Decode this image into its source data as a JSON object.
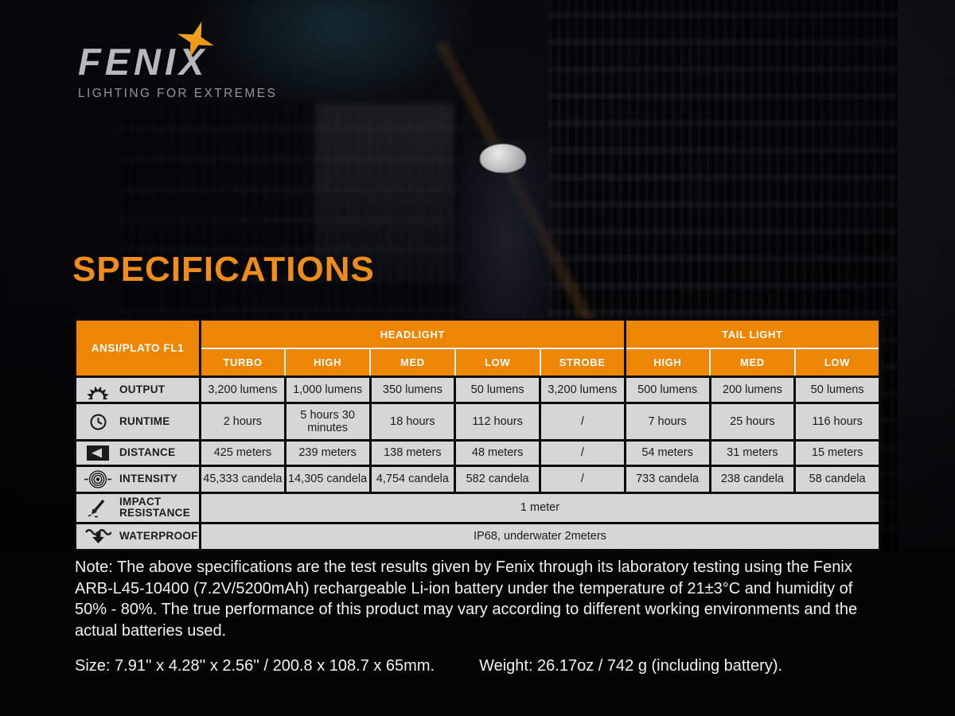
{
  "brand": {
    "logo_text": "FENIX",
    "tagline": "LIGHTING FOR EXTREMES"
  },
  "page_title": "SPECIFICATIONS",
  "table": {
    "corner_label": "ANSI/PLATO FL1",
    "groups": [
      {
        "label": "HEADLIGHT",
        "cols": [
          "TURBO",
          "HIGH",
          "MED",
          "LOW",
          "STROBE"
        ]
      },
      {
        "label": "TAIL LIGHT",
        "cols": [
          "HIGH",
          "MED",
          "LOW"
        ]
      }
    ],
    "rows": [
      {
        "icon": "output-icon",
        "label": "OUTPUT",
        "values": [
          "3,200 lumens",
          "1,000 lumens",
          "350 lumens",
          "50 lumens",
          "3,200 lumens",
          "500 lumens",
          "200 lumens",
          "50 lumens"
        ]
      },
      {
        "icon": "runtime-icon",
        "label": "RUNTIME",
        "values": [
          "2 hours",
          "5 hours 30 minutes",
          "18 hours",
          "112 hours",
          "/",
          "7 hours",
          "25 hours",
          "116 hours"
        ]
      },
      {
        "icon": "distance-icon",
        "label": "DISTANCE",
        "values": [
          "425 meters",
          "239 meters",
          "138 meters",
          "48 meters",
          "/",
          "54 meters",
          "31 meters",
          "15 meters"
        ]
      },
      {
        "icon": "intensity-icon",
        "label": "INTENSITY",
        "values": [
          "45,333 candela",
          "14,305 candela",
          "4,754 candela",
          "582 candela",
          "/",
          "733 candela",
          "238 candela",
          "58 candela"
        ]
      },
      {
        "icon": "impact-icon",
        "label": "IMPACT RESISTANCE",
        "span_value": "1 meter"
      },
      {
        "icon": "waterproof-icon",
        "label": "WATERPROOF",
        "span_value": "IP68, underwater 2meters"
      }
    ]
  },
  "note": "Note: The above specifications are the test results given by Fenix through its laboratory testing using the Fenix ARB-L45-10400 (7.2V/5200mAh) rechargeable Li-ion battery under the temperature of 21±3°C and humidity of 50% - 80%. The true performance of this product may vary according to different working environments and the actual batteries used.",
  "footer": {
    "size": "Size: 7.91'' x 4.28'' x 2.56'' / 200.8 x 108.7 x 65mm.",
    "weight": "Weight: 26.17oz / 742 g (including battery)."
  },
  "colors": {
    "accent_orange": "#ED8604",
    "heading_orange": "#EE8C1C",
    "cell_gray": "#D6D6D5",
    "note_text": "#F2F2F2"
  }
}
